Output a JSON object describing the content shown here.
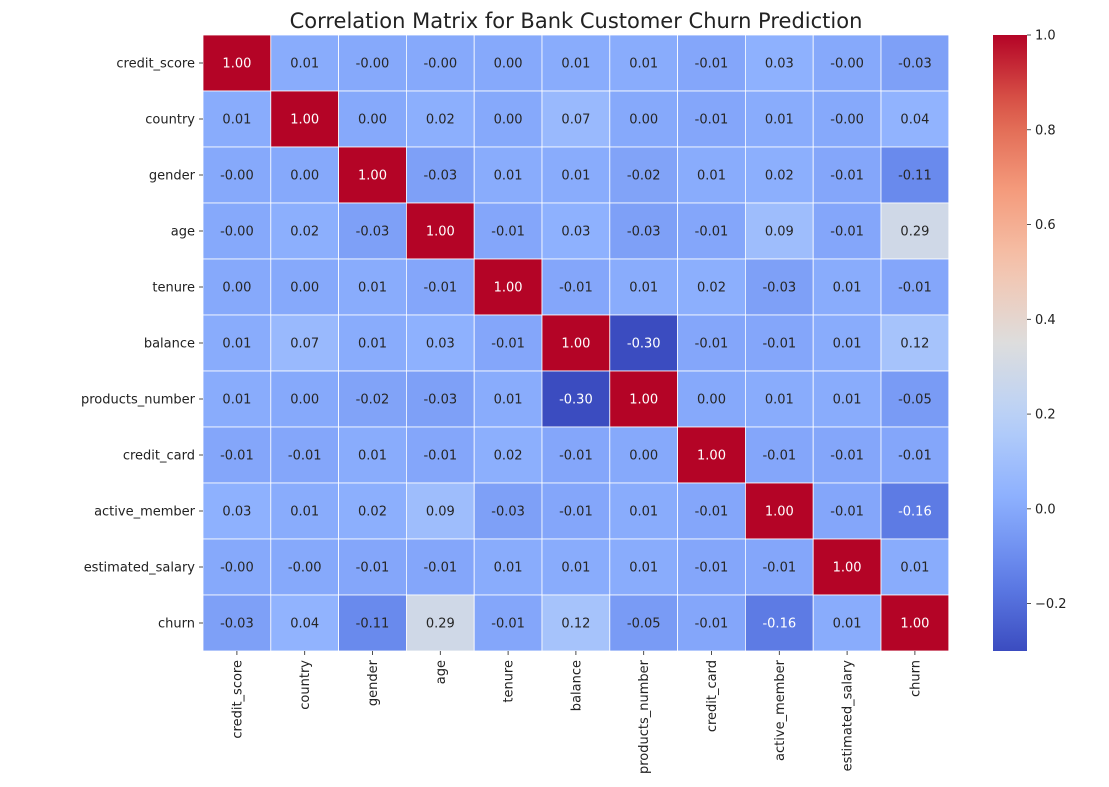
{
  "chart_data": {
    "type": "heatmap",
    "title": "Correlation Matrix for Bank Customer Churn Prediction",
    "xlabel": "",
    "ylabel": "",
    "colormap": "coolwarm",
    "value_range": [
      -0.3,
      1.0
    ],
    "x_categories": [
      "credit_score",
      "country",
      "gender",
      "age",
      "tenure",
      "balance",
      "products_number",
      "credit_card",
      "active_member",
      "estimated_salary",
      "churn"
    ],
    "y_categories": [
      "credit_score",
      "country",
      "gender",
      "age",
      "tenure",
      "balance",
      "products_number",
      "credit_card",
      "active_member",
      "estimated_salary",
      "churn"
    ],
    "matrix": [
      [
        1.0,
        0.01,
        -0.0,
        -0.0,
        0.0,
        0.01,
        0.01,
        -0.01,
        0.03,
        -0.0,
        -0.03
      ],
      [
        0.01,
        1.0,
        0.0,
        0.02,
        0.0,
        0.07,
        0.0,
        -0.01,
        0.01,
        -0.0,
        0.04
      ],
      [
        -0.0,
        0.0,
        1.0,
        -0.03,
        0.01,
        0.01,
        -0.02,
        0.01,
        0.02,
        -0.01,
        -0.11
      ],
      [
        -0.0,
        0.02,
        -0.03,
        1.0,
        -0.01,
        0.03,
        -0.03,
        -0.01,
        0.09,
        -0.01,
        0.29
      ],
      [
        0.0,
        0.0,
        0.01,
        -0.01,
        1.0,
        -0.01,
        0.01,
        0.02,
        -0.03,
        0.01,
        -0.01
      ],
      [
        0.01,
        0.07,
        0.01,
        0.03,
        -0.01,
        1.0,
        -0.3,
        -0.01,
        -0.01,
        0.01,
        0.12
      ],
      [
        0.01,
        0.0,
        -0.02,
        -0.03,
        0.01,
        -0.3,
        1.0,
        0.0,
        0.01,
        0.01,
        -0.05
      ],
      [
        -0.01,
        -0.01,
        0.01,
        -0.01,
        0.02,
        -0.01,
        0.0,
        1.0,
        -0.01,
        -0.01,
        -0.01
      ],
      [
        0.03,
        0.01,
        0.02,
        0.09,
        -0.03,
        -0.01,
        0.01,
        -0.01,
        1.0,
        -0.01,
        -0.16
      ],
      [
        -0.0,
        -0.0,
        -0.01,
        -0.01,
        0.01,
        0.01,
        0.01,
        -0.01,
        -0.01,
        1.0,
        0.01
      ],
      [
        -0.03,
        0.04,
        -0.11,
        0.29,
        -0.01,
        0.12,
        -0.05,
        -0.01,
        -0.16,
        0.01,
        1.0
      ]
    ],
    "cell_labels": [
      [
        "1.00",
        "0.01",
        "-0.00",
        "-0.00",
        "0.00",
        "0.01",
        "0.01",
        "-0.01",
        "0.03",
        "-0.00",
        "-0.03"
      ],
      [
        "0.01",
        "1.00",
        "0.00",
        "0.02",
        "0.00",
        "0.07",
        "0.00",
        "-0.01",
        "0.01",
        "-0.00",
        "0.04"
      ],
      [
        "-0.00",
        "0.00",
        "1.00",
        "-0.03",
        "0.01",
        "0.01",
        "-0.02",
        "0.01",
        "0.02",
        "-0.01",
        "-0.11"
      ],
      [
        "-0.00",
        "0.02",
        "-0.03",
        "1.00",
        "-0.01",
        "0.03",
        "-0.03",
        "-0.01",
        "0.09",
        "-0.01",
        "0.29"
      ],
      [
        "0.00",
        "0.00",
        "0.01",
        "-0.01",
        "1.00",
        "-0.01",
        "0.01",
        "0.02",
        "-0.03",
        "0.01",
        "-0.01"
      ],
      [
        "0.01",
        "0.07",
        "0.01",
        "0.03",
        "-0.01",
        "1.00",
        "-0.30",
        "-0.01",
        "-0.01",
        "0.01",
        "0.12"
      ],
      [
        "0.01",
        "0.00",
        "-0.02",
        "-0.03",
        "0.01",
        "-0.30",
        "1.00",
        "0.00",
        "0.01",
        "0.01",
        "-0.05"
      ],
      [
        "-0.01",
        "-0.01",
        "0.01",
        "-0.01",
        "0.02",
        "-0.01",
        "0.00",
        "1.00",
        "-0.01",
        "-0.01",
        "-0.01"
      ],
      [
        "0.03",
        "0.01",
        "0.02",
        "0.09",
        "-0.03",
        "-0.01",
        "0.01",
        "-0.01",
        "1.00",
        "-0.01",
        "-0.16"
      ],
      [
        "-0.00",
        "-0.00",
        "-0.01",
        "-0.01",
        "0.01",
        "0.01",
        "0.01",
        "-0.01",
        "-0.01",
        "1.00",
        "0.01"
      ],
      [
        "-0.03",
        "0.04",
        "-0.11",
        "0.29",
        "-0.01",
        "0.12",
        "-0.05",
        "-0.01",
        "-0.16",
        "0.01",
        "1.00"
      ]
    ],
    "colorbar": {
      "ticks": [
        -0.2,
        0.0,
        0.2,
        0.4,
        0.6,
        0.8,
        1.0
      ],
      "tick_labels": [
        "−0.2",
        "0.0",
        "0.2",
        "0.4",
        "0.6",
        "0.8",
        "1.0"
      ]
    },
    "cell_border_color": "#ffffff",
    "grid": false,
    "legend": "colorbar-right"
  }
}
